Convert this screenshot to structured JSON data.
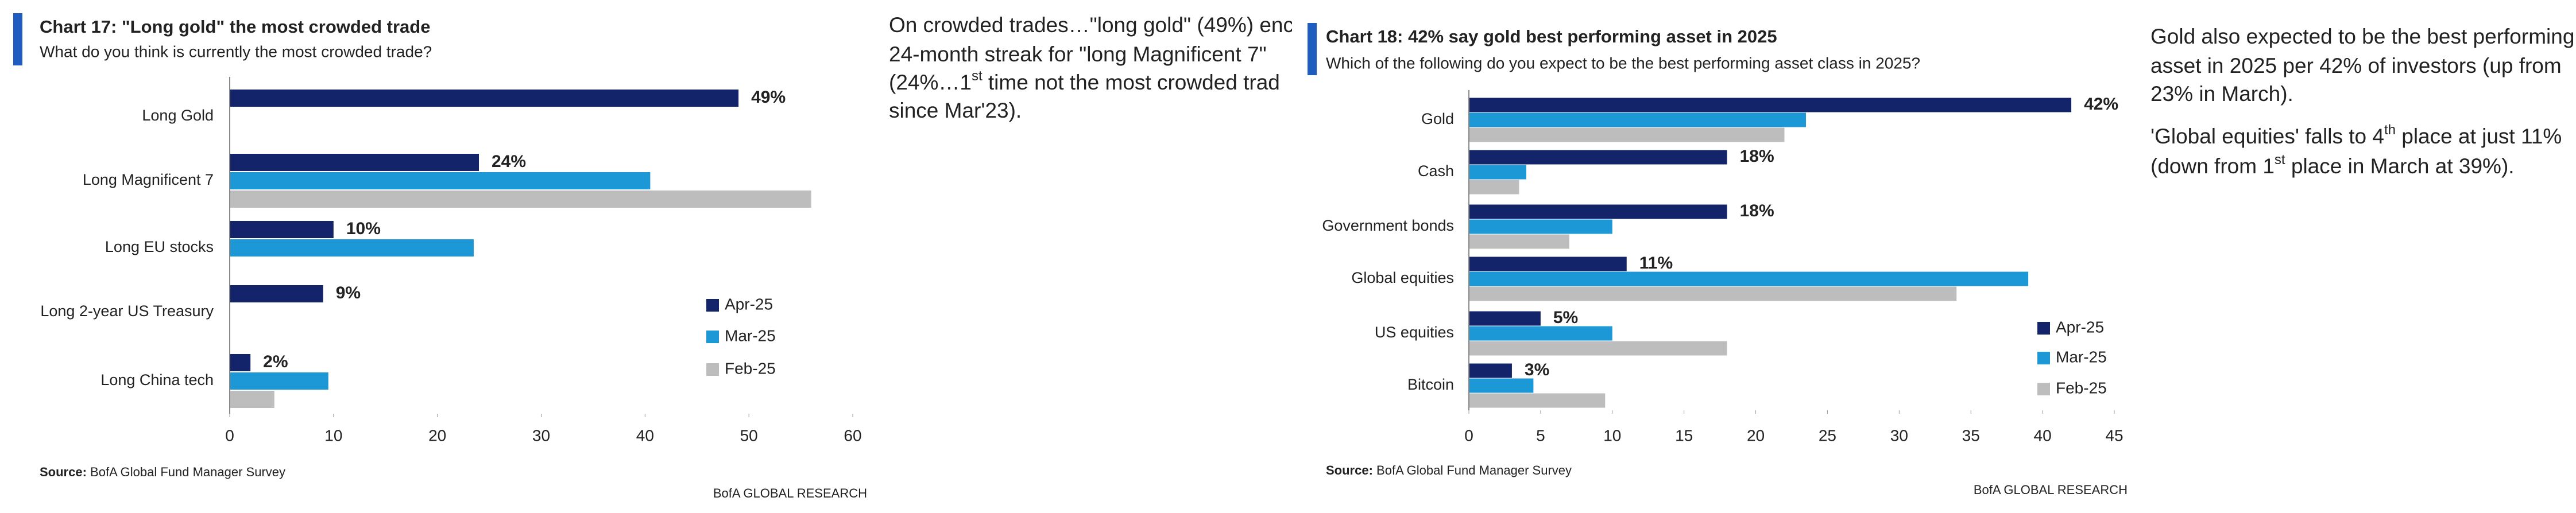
{
  "chart_data": [
    {
      "type": "bar",
      "orientation": "horizontal",
      "title": "Chart 17: \"Long gold\" the most crowded trade",
      "subtitle": "What do you think is currently the most crowded trade?",
      "categories": [
        "Long Gold",
        "Long Magnificent 7",
        "Long EU stocks",
        "Long 2-year US Treasury",
        "Long China tech"
      ],
      "series": [
        {
          "name": "Apr-25",
          "color": "#14246a",
          "values": [
            49,
            24,
            10,
            9,
            2
          ],
          "value_labels": [
            "49%",
            "24%",
            "10%",
            "9%",
            "2%"
          ]
        },
        {
          "name": "Mar-25",
          "color": "#1b98d5",
          "values": [
            null,
            40.5,
            23.5,
            null,
            9.5
          ]
        },
        {
          "name": "Feb-25",
          "color": "#bdbdbd",
          "values": [
            null,
            56,
            null,
            null,
            4.3
          ]
        }
      ],
      "xlim": [
        0,
        60
      ],
      "xticks": [
        0,
        10,
        20,
        30,
        40,
        50,
        60
      ],
      "value_label_color": "#e60000",
      "legend": "lower right",
      "source_label": "Source:",
      "source": "BofA Global Fund Manager Survey",
      "credit": "BofA GLOBAL RESEARCH"
    },
    {
      "type": "bar",
      "orientation": "horizontal",
      "title": "Chart 18: 42% say gold best performing asset in 2025",
      "subtitle": "Which of the following do you expect to be the best performing asset class in 2025?",
      "categories": [
        "Gold",
        "Cash",
        "Government bonds",
        "Global equities",
        "US equities",
        "Bitcoin"
      ],
      "series": [
        {
          "name": "Apr-25",
          "color": "#14246a",
          "values": [
            42,
            18,
            18,
            11,
            5,
            3
          ],
          "value_labels": [
            "42%",
            "18%",
            "18%",
            "11%",
            "5%",
            "3%"
          ]
        },
        {
          "name": "Mar-25",
          "color": "#1b98d5",
          "values": [
            23.5,
            4,
            10,
            39,
            10,
            4.5
          ]
        },
        {
          "name": "Feb-25",
          "color": "#bdbdbd",
          "values": [
            22,
            3.5,
            7,
            34,
            18,
            9.5
          ]
        }
      ],
      "xlim": [
        0,
        45
      ],
      "xticks": [
        0,
        5,
        10,
        15,
        20,
        25,
        30,
        35,
        40,
        45
      ],
      "value_label_color": "#e60000",
      "legend": "lower right",
      "source_label": "Source:",
      "source": "BofA Global Fund Manager Survey",
      "credit": "BofA GLOBAL RESEARCH"
    }
  ],
  "commentary": [
    {
      "lines": [
        [
          "On crowded trades…\"long gold\" (49%) enc"
        ],
        [
          "24-month streak for \"long Magnificent 7\""
        ],
        [
          "(24%…1",
          {
            "sup": "st"
          },
          " time not the most crowded trad"
        ],
        [
          "since Mar'23)."
        ]
      ]
    },
    {
      "lines": [
        [
          "Gold also expected to be the best performing"
        ],
        [
          "asset in 2025 per 42% of investors (up from"
        ],
        [
          "23% in March)."
        ],
        [
          "'Global equities' falls to 4",
          {
            "sup": "th"
          },
          " place at just 11%"
        ],
        [
          "(down from 1",
          {
            "sup": "st"
          },
          " place in March at 39%)."
        ]
      ]
    }
  ]
}
